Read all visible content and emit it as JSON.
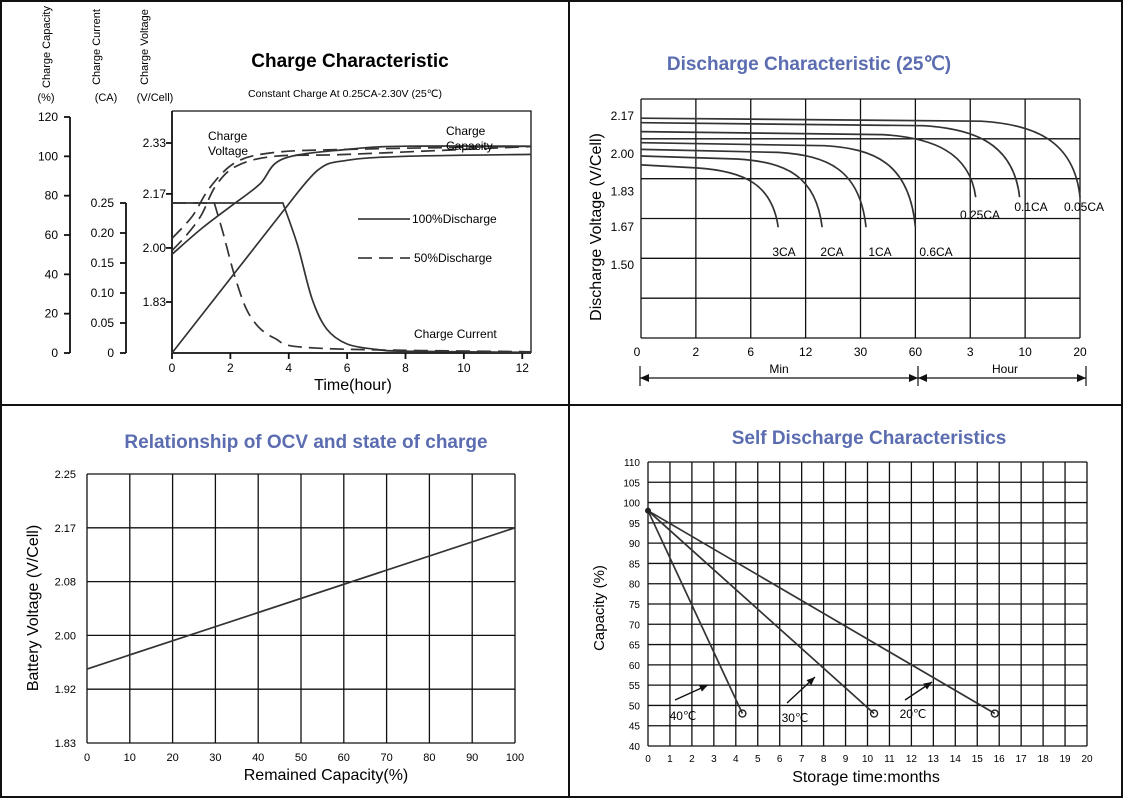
{
  "colors": {
    "title": "#5b6db0",
    "line": "#1a1a1a",
    "curve": "#3a3a3a"
  },
  "chart_data": [
    {
      "type": "line",
      "title": "Charge Characteristic",
      "subtitle": "Constant Charge At 0.25CA-2.30V  (25℃)",
      "xlabel": "Time(hour)",
      "xticks": [
        0,
        2,
        4,
        6,
        8,
        10,
        12
      ],
      "xlim": [
        0,
        12.3
      ],
      "axes": [
        {
          "name": "Charge Capacity",
          "unit": "(%)",
          "ticks": [
            "120",
            "100",
            "80",
            "60",
            "40",
            "20",
            "0"
          ]
        },
        {
          "name": "Charge Current",
          "unit": "(CA)",
          "ticks": [
            "0.25",
            "0.20",
            "0.15",
            "0.10",
            "0.05",
            "0"
          ]
        },
        {
          "name": "Charge Voltage",
          "unit": "(V/Cell)",
          "ticks": [
            "2.33",
            "2.17",
            "2.00",
            "1.83"
          ]
        }
      ],
      "labels": {
        "charge_voltage": "Charge Voltage",
        "charge_capacity": "Charge Capacity",
        "charge_current": "Charge Current"
      },
      "legend": [
        {
          "name": "100%Discharge",
          "style": "solid"
        },
        {
          "name": "50%Discharge",
          "style": "dashed"
        }
      ],
      "series": [
        {
          "name": "Voltage 100%",
          "style": "solid",
          "x": [
            0,
            1,
            2,
            3,
            3.8,
            6,
            8,
            12.3
          ],
          "y": [
            1.98,
            2.06,
            2.13,
            2.2,
            2.28,
            2.31,
            2.32,
            2.32
          ]
        },
        {
          "name": "Voltage 50%",
          "style": "dashed",
          "x": [
            0,
            0.7,
            1.3,
            2.2,
            3.5,
            6,
            12.3
          ],
          "y": [
            2.03,
            2.1,
            2.19,
            2.27,
            2.3,
            2.31,
            2.32
          ]
        },
        {
          "name": "Capacity 100%",
          "style": "solid",
          "x": [
            0,
            3.8,
            5,
            6,
            8,
            12.3
          ],
          "y": [
            0,
            72,
            93,
            98,
            100,
            101
          ]
        },
        {
          "name": "Capacity 50%",
          "style": "dashed",
          "x": [
            0,
            0.5,
            1,
            1.5,
            2.2,
            3.5,
            6,
            12.3
          ],
          "y": [
            52,
            60,
            70,
            85,
            95,
            100,
            101,
            105
          ]
        },
        {
          "name": "Current 100%",
          "style": "solid",
          "x": [
            0,
            3.8,
            4.3,
            4.8,
            5.3,
            6,
            7,
            8,
            12.3
          ],
          "y": [
            0.25,
            0.25,
            0.18,
            0.09,
            0.04,
            0.015,
            0.006,
            0.003,
            0.001
          ]
        },
        {
          "name": "Current 50%",
          "style": "dashed",
          "x": [
            0,
            1.45,
            1.75,
            2.2,
            2.7,
            3.5,
            5,
            12.3
          ],
          "y": [
            0.25,
            0.25,
            0.2,
            0.12,
            0.06,
            0.025,
            0.008,
            0.002
          ]
        }
      ]
    },
    {
      "type": "line",
      "title": "Discharge Characteristic  (25℃)",
      "ylabel": "Discharge Voltage (V/Cell)",
      "yticks": [
        "2.17",
        "2.00",
        "1.83",
        "1.67",
        "1.50"
      ],
      "xticks": [
        "0",
        "2",
        "6",
        "12",
        "30",
        "60",
        "3",
        "10",
        "20"
      ],
      "x_units": {
        "min": "Min",
        "hour": "Hour"
      },
      "series": [
        {
          "name": "3CA",
          "end_col": 2.5,
          "start_v": 1.95
        },
        {
          "name": "2CA",
          "end_col": 3.3,
          "start_v": 1.99
        },
        {
          "name": "1CA",
          "end_col": 4.1,
          "start_v": 2.02
        },
        {
          "name": "0.6CA",
          "end_col": 5.0,
          "start_v": 2.05
        },
        {
          "name": "0.25CA",
          "end_col": 6.1,
          "start_v": 2.1
        },
        {
          "name": "0.1CA",
          "end_col": 6.9,
          "start_v": 2.14
        },
        {
          "name": "0.05CA",
          "end_col": 8.0,
          "start_v": 2.16
        }
      ]
    },
    {
      "type": "line",
      "title": "Relationship of OCV and state of charge",
      "xlabel": "Remained Capacity(%)",
      "ylabel": "Battery Voltage (V/Cell)",
      "xticks": [
        "0",
        "10",
        "20",
        "30",
        "40",
        "50",
        "60",
        "70",
        "80",
        "90",
        "100"
      ],
      "yticks": [
        "2.25",
        "2.17",
        "2.08",
        "2.00",
        "1.92",
        "1.83"
      ],
      "series": [
        {
          "name": "OCV",
          "x": [
            0,
            100
          ],
          "y": [
            1.95,
            2.17
          ]
        }
      ]
    },
    {
      "type": "line",
      "title": "Self Discharge Characteristics",
      "xlabel": "Storage time:months",
      "ylabel": "Capacity (%)",
      "xticks": [
        "0",
        "1",
        "2",
        "3",
        "4",
        "5",
        "6",
        "7",
        "8",
        "9",
        "10",
        "11",
        "12",
        "13",
        "14",
        "15",
        "16",
        "17",
        "18",
        "19",
        "20"
      ],
      "yticks": [
        "110",
        "105",
        "100",
        "95",
        "90",
        "85",
        "80",
        "75",
        "70",
        "65",
        "60",
        "55",
        "50",
        "45",
        "40"
      ],
      "ylim": [
        40,
        110
      ],
      "series": [
        {
          "name": "40℃",
          "x": [
            0,
            4.3
          ],
          "y": [
            98,
            48
          ]
        },
        {
          "name": "30℃",
          "x": [
            0,
            10.3
          ],
          "y": [
            98,
            48
          ]
        },
        {
          "name": "20℃",
          "x": [
            0,
            15.8
          ],
          "y": [
            98,
            48
          ]
        }
      ]
    }
  ]
}
